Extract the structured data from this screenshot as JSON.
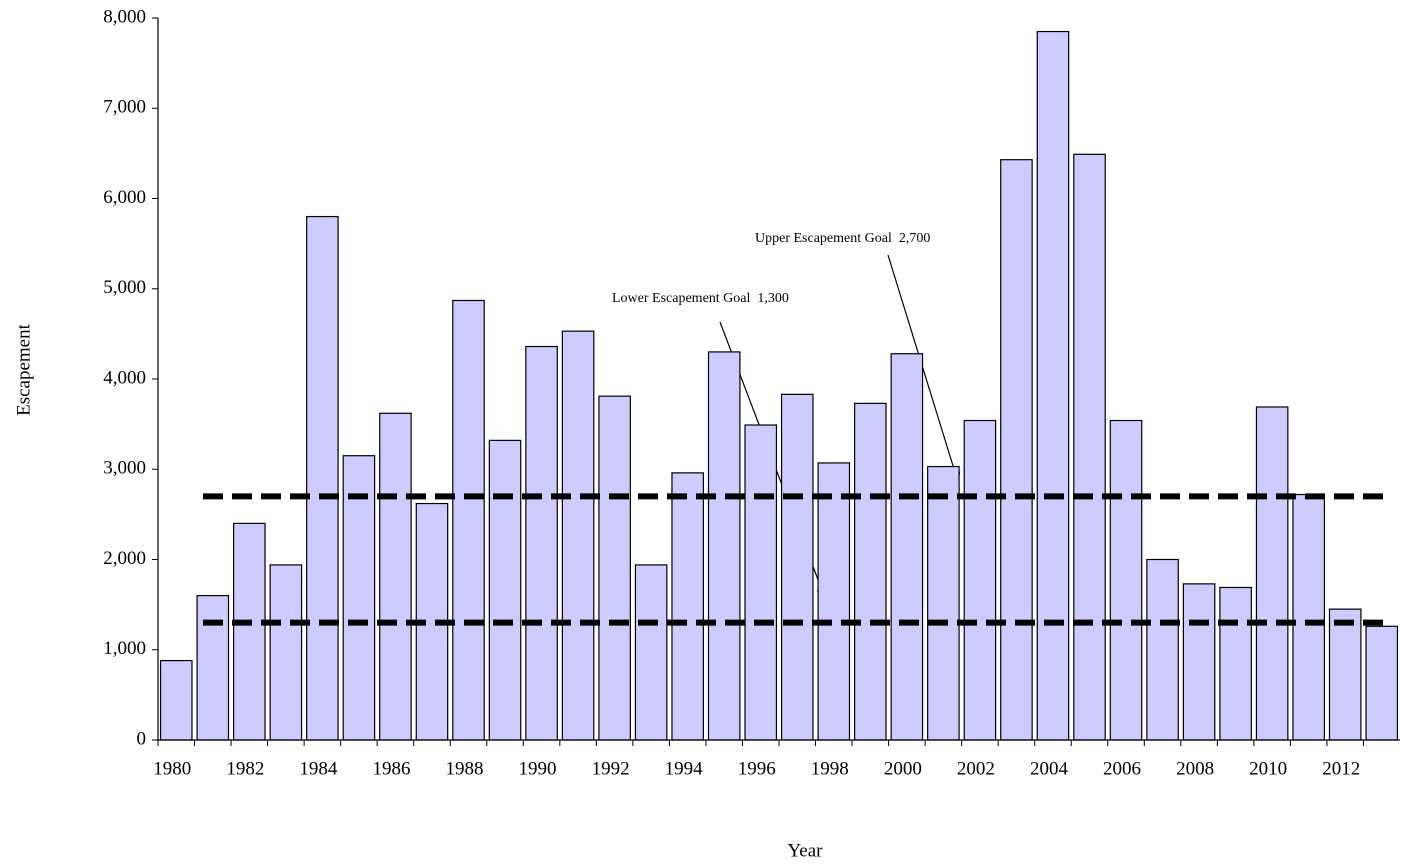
{
  "chart_data": {
    "type": "bar",
    "x_label": "Year",
    "y_label": "Escapement",
    "categories": [
      "1980",
      null,
      "1982",
      null,
      "1984",
      null,
      "1986",
      null,
      "1988",
      null,
      "1990",
      null,
      "1992",
      null,
      "1994",
      null,
      "1996",
      null,
      "1998",
      null,
      "2000",
      null,
      "2002",
      null,
      "2004",
      null,
      "2006",
      null,
      "2008",
      null,
      "2010",
      null,
      "2012",
      null
    ],
    "values": [
      880,
      1600,
      2400,
      1940,
      5800,
      3150,
      3620,
      2620,
      4870,
      3320,
      4360,
      4530,
      3810,
      1940,
      2960,
      4300,
      3490,
      3830,
      3070,
      3730,
      4280,
      3030,
      3540,
      6430,
      7850,
      6490,
      3540,
      2000,
      1730,
      1690,
      3690,
      2720,
      1450,
      1260
    ],
    "color": "#ccccff",
    "ylim": [
      0,
      8000
    ],
    "yticks": [
      0,
      {
        "value": 1000,
        "label": "1,000"
      },
      {
        "value": 2000,
        "label": "2,000"
      },
      {
        "value": 3000,
        "label": "3,000"
      },
      {
        "value": 4000,
        "label": "4,000"
      },
      {
        "value": 5000,
        "label": "5,000"
      },
      {
        "value": 6000,
        "label": "6,000"
      },
      {
        "value": 7000,
        "label": "7,000"
      },
      {
        "value": 8000,
        "label": "8,000"
      }
    ],
    "reference_lines": [
      {
        "label": "Lower Escapement Goal  1,300",
        "value": 1300
      },
      {
        "label": "Upper Escapement Goal  2,700",
        "value": 2700
      }
    ]
  }
}
